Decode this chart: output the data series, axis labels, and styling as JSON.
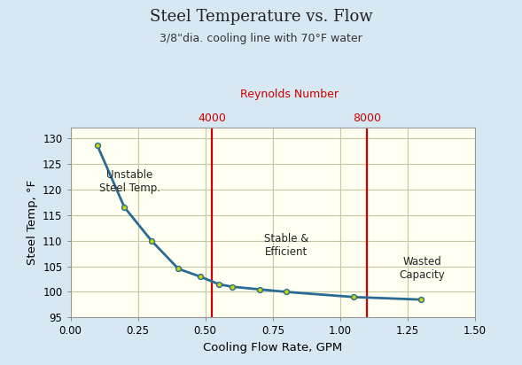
{
  "title": "Steel Temperature vs. Flow",
  "subtitle": "3/8\"dia. cooling line with 70°F water",
  "xlabel": "Cooling Flow Rate, GPM",
  "ylabel": "Steel Temp, °F",
  "xlim": [
    0.0,
    1.5
  ],
  "ylim": [
    95,
    132
  ],
  "xticks": [
    0.0,
    0.25,
    0.5,
    0.75,
    1.0,
    1.25,
    1.5
  ],
  "xtick_labels": [
    "0.00",
    "0.25",
    "0.50",
    "0.75",
    "1.00",
    "1.25",
    "1.50"
  ],
  "yticks": [
    95,
    100,
    105,
    110,
    115,
    120,
    125,
    130
  ],
  "x_data": [
    0.1,
    0.2,
    0.3,
    0.4,
    0.48,
    0.55,
    0.6,
    0.7,
    0.8,
    1.05,
    1.3
  ],
  "y_data": [
    128.5,
    116.5,
    110.0,
    104.5,
    103.0,
    101.5,
    101.0,
    100.5,
    100.0,
    99.0,
    98.5
  ],
  "line_color": "#2a6b96",
  "marker_color": "#c8d800",
  "marker_edge_color": "#2a6b96",
  "vline1_x": 0.525,
  "vline2_x": 1.1,
  "vline_color": "#cc0000",
  "reynolds_label": "Reynolds Number",
  "reynolds_4000": "4000",
  "reynolds_8000": "8000",
  "reynolds_color": "#cc0000",
  "label_unstable": "Unstable\nSteel Temp.",
  "label_stable": "Stable &\nEfficient",
  "label_wasted": "Wasted\nCapacity",
  "plot_bg_color": "#fffff2",
  "outer_bg_color": "#d8e8f2",
  "grid_color": "#c8c8a0",
  "title_fontsize": 13,
  "subtitle_fontsize": 9,
  "axis_label_fontsize": 9.5,
  "tick_fontsize": 8.5,
  "annotation_fontsize": 8.5,
  "reynolds_fontsize": 9
}
